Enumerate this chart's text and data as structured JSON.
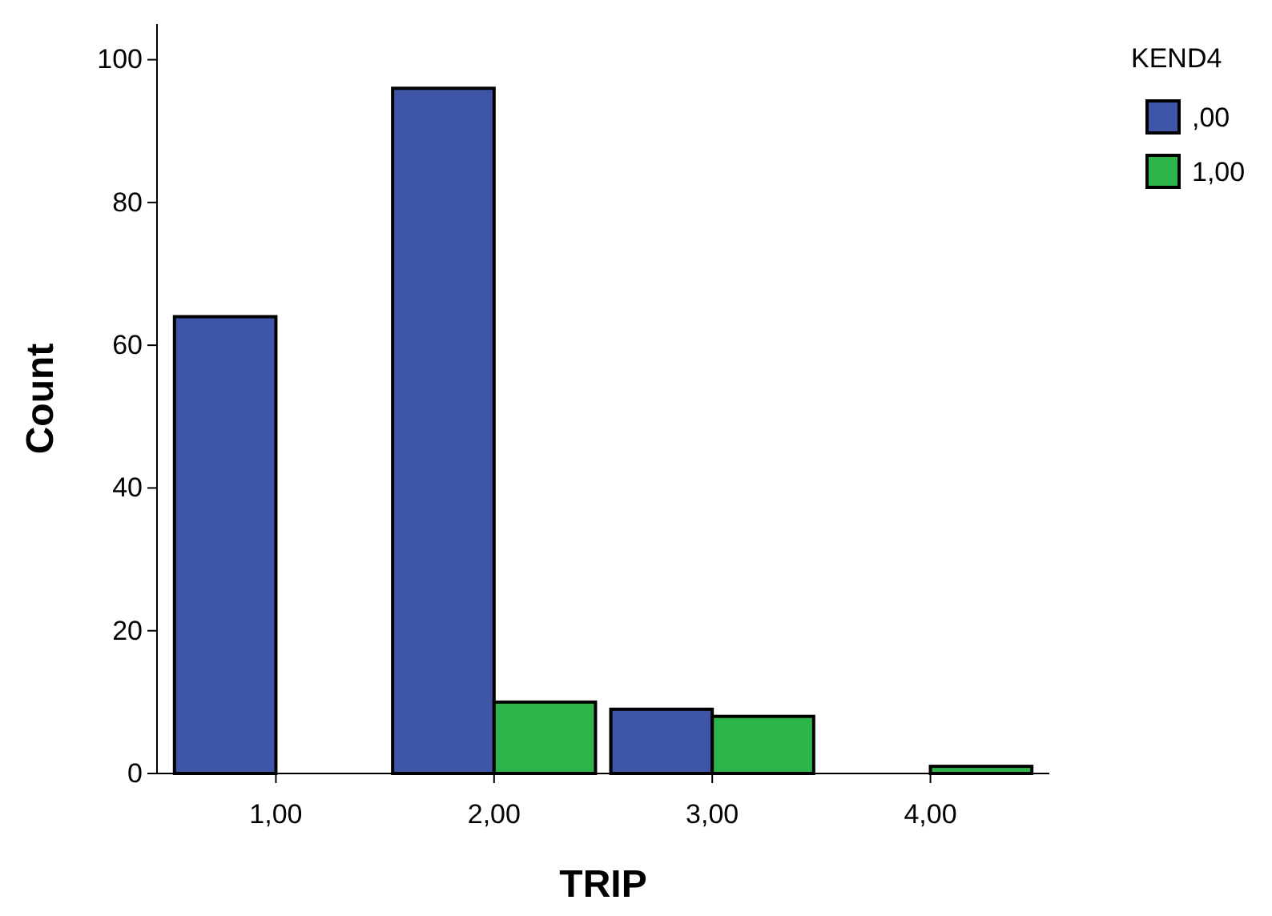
{
  "chart_data": {
    "type": "bar",
    "xlabel": "TRIP",
    "ylabel": "Count",
    "legend_title": "KEND4",
    "categories": [
      "1,00",
      "2,00",
      "3,00",
      "4,00"
    ],
    "series": [
      {
        "name": ",00",
        "color": "#3f55a8",
        "values": [
          64,
          96,
          9,
          0
        ]
      },
      {
        "name": "1,00",
        "color": "#2db44a",
        "values": [
          0,
          10,
          8,
          1
        ]
      }
    ],
    "ylim": [
      0,
      105
    ],
    "yticks": [
      0,
      20,
      40,
      60,
      80,
      100
    ],
    "grid": false,
    "legend": "top right"
  }
}
